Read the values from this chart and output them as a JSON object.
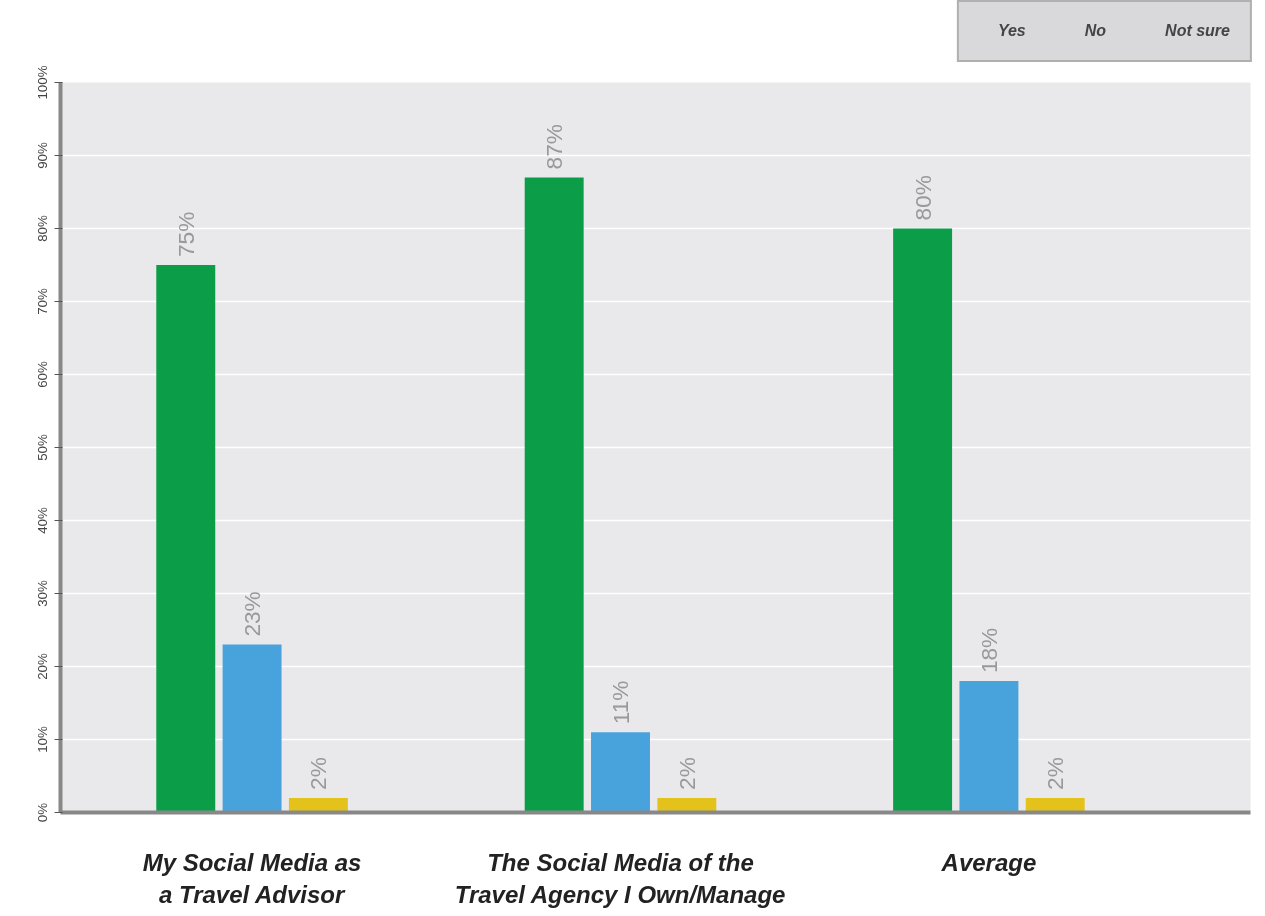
{
  "chart_data": {
    "type": "bar",
    "categories": [
      "My Social Media as a Travel Advisor",
      "The Social Media of the Travel Agency I Own/Manage",
      "Average"
    ],
    "series": [
      {
        "name": "Yes",
        "color": "#0c9d48",
        "values": [
          75,
          87,
          80
        ],
        "value_labels": [
          "75%",
          "87%",
          "80%"
        ]
      },
      {
        "name": "No",
        "color": "#48a2dc",
        "values": [
          23,
          11,
          18
        ],
        "value_labels": [
          "23%",
          "11%",
          "18%"
        ]
      },
      {
        "name": "Not sure",
        "color": "#e3c21c",
        "values": [
          2,
          2,
          2
        ],
        "value_labels": [
          "2%",
          "2%",
          "2%"
        ]
      }
    ],
    "ylim": [
      0,
      100
    ],
    "yticks": [
      {
        "value": 0,
        "label": "0%"
      },
      {
        "value": 10,
        "label": "10%"
      },
      {
        "value": 20,
        "label": "20%"
      },
      {
        "value": 30,
        "label": "30%"
      },
      {
        "value": 40,
        "label": "40%"
      },
      {
        "value": 50,
        "label": "50%"
      },
      {
        "value": 60,
        "label": "60%"
      },
      {
        "value": 70,
        "label": "70%"
      },
      {
        "value": 80,
        "label": "80%"
      },
      {
        "value": 90,
        "label": "90%"
      },
      {
        "value": 100,
        "label": "100%"
      }
    ],
    "grid": "y",
    "legend": "top right"
  }
}
